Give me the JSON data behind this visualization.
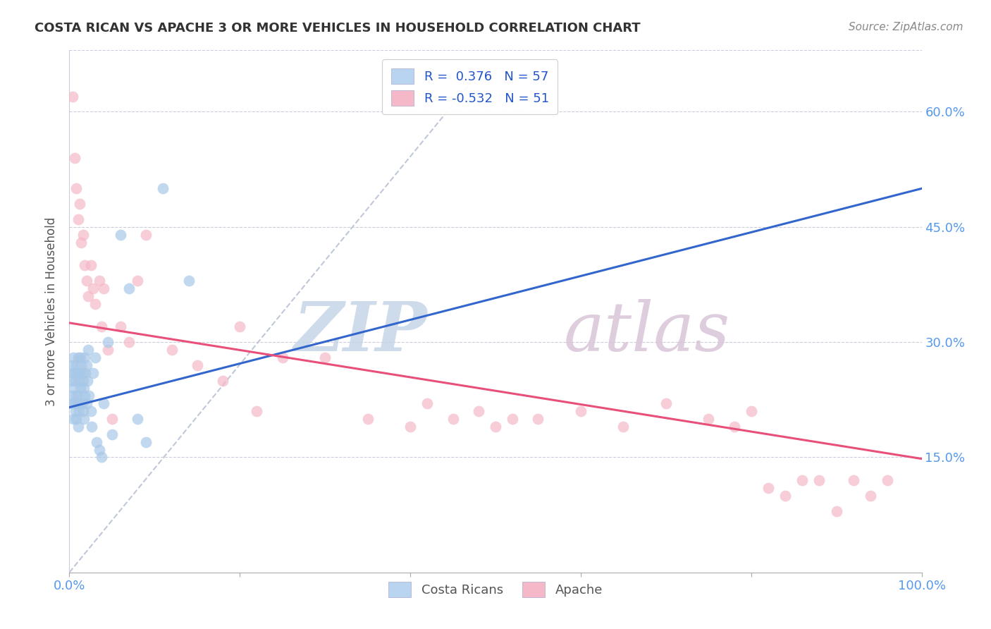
{
  "title": "COSTA RICAN VS APACHE 3 OR MORE VEHICLES IN HOUSEHOLD CORRELATION CHART",
  "source": "Source: ZipAtlas.com",
  "ylabel": "3 or more Vehicles in Household",
  "xlim": [
    0.0,
    1.0
  ],
  "ylim": [
    0.0,
    0.68
  ],
  "xticks": [
    0.0,
    0.2,
    0.4,
    0.6,
    0.8,
    1.0
  ],
  "xtick_labels": [
    "0.0%",
    "",
    "",
    "",
    "",
    "100.0%"
  ],
  "yticks": [
    0.15,
    0.3,
    0.45,
    0.6
  ],
  "ytick_labels": [
    "15.0%",
    "30.0%",
    "45.0%",
    "60.0%"
  ],
  "blue_color": "#a8c8e8",
  "pink_color": "#f4b8c8",
  "blue_line_color": "#3366cc",
  "pink_line_color": "#e8507a",
  "diagonal_color": "#c0c8d8",
  "blue_scatter_x": [
    0.002,
    0.003,
    0.003,
    0.004,
    0.004,
    0.005,
    0.005,
    0.005,
    0.006,
    0.006,
    0.007,
    0.007,
    0.008,
    0.008,
    0.008,
    0.009,
    0.009,
    0.01,
    0.01,
    0.01,
    0.011,
    0.011,
    0.012,
    0.012,
    0.013,
    0.013,
    0.014,
    0.015,
    0.015,
    0.016,
    0.016,
    0.017,
    0.017,
    0.018,
    0.018,
    0.019,
    0.02,
    0.02,
    0.021,
    0.022,
    0.023,
    0.025,
    0.026,
    0.028,
    0.03,
    0.032,
    0.035,
    0.038,
    0.04,
    0.045,
    0.05,
    0.06,
    0.07,
    0.08,
    0.09,
    0.11,
    0.14
  ],
  "blue_scatter_y": [
    0.22,
    0.25,
    0.27,
    0.23,
    0.26,
    0.2,
    0.24,
    0.28,
    0.22,
    0.26,
    0.21,
    0.25,
    0.2,
    0.23,
    0.27,
    0.22,
    0.26,
    0.19,
    0.23,
    0.28,
    0.21,
    0.25,
    0.22,
    0.26,
    0.24,
    0.28,
    0.27,
    0.22,
    0.26,
    0.21,
    0.25,
    0.2,
    0.24,
    0.23,
    0.28,
    0.26,
    0.22,
    0.27,
    0.25,
    0.29,
    0.23,
    0.21,
    0.19,
    0.26,
    0.28,
    0.17,
    0.16,
    0.15,
    0.22,
    0.3,
    0.18,
    0.44,
    0.37,
    0.2,
    0.17,
    0.5,
    0.38
  ],
  "pink_scatter_x": [
    0.004,
    0.006,
    0.008,
    0.01,
    0.012,
    0.014,
    0.016,
    0.018,
    0.02,
    0.022,
    0.025,
    0.028,
    0.03,
    0.035,
    0.038,
    0.04,
    0.045,
    0.05,
    0.06,
    0.07,
    0.08,
    0.09,
    0.12,
    0.15,
    0.18,
    0.2,
    0.22,
    0.25,
    0.3,
    0.35,
    0.4,
    0.42,
    0.45,
    0.48,
    0.5,
    0.52,
    0.55,
    0.6,
    0.65,
    0.7,
    0.75,
    0.78,
    0.8,
    0.82,
    0.84,
    0.86,
    0.88,
    0.9,
    0.92,
    0.94,
    0.96
  ],
  "pink_scatter_y": [
    0.62,
    0.54,
    0.5,
    0.46,
    0.48,
    0.43,
    0.44,
    0.4,
    0.38,
    0.36,
    0.4,
    0.37,
    0.35,
    0.38,
    0.32,
    0.37,
    0.29,
    0.2,
    0.32,
    0.3,
    0.38,
    0.44,
    0.29,
    0.27,
    0.25,
    0.32,
    0.21,
    0.28,
    0.28,
    0.2,
    0.19,
    0.22,
    0.2,
    0.21,
    0.19,
    0.2,
    0.2,
    0.21,
    0.19,
    0.22,
    0.2,
    0.19,
    0.21,
    0.11,
    0.1,
    0.12,
    0.12,
    0.08,
    0.12,
    0.1,
    0.12
  ],
  "blue_line_x": [
    0.0,
    1.0
  ],
  "blue_line_y": [
    0.215,
    0.5
  ],
  "pink_line_x": [
    0.0,
    1.0
  ],
  "pink_line_y": [
    0.325,
    0.148
  ],
  "diag_line_x": [
    0.0,
    0.48
  ],
  "diag_line_y": [
    0.0,
    0.65
  ]
}
